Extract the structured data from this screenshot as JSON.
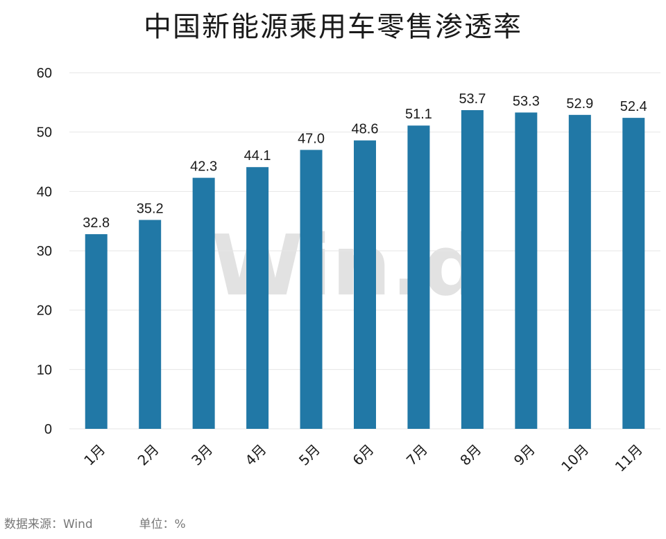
{
  "title": "中国新能源乘用车零售渗透率",
  "watermark": "Win.d",
  "footer": {
    "source_label": "数据来源：Wind",
    "unit_label": "单位：%"
  },
  "colors": {
    "bar": "#2178a6",
    "grid": "#e6e6e6",
    "text": "#1a1a1a",
    "watermark": "#e2e2e2"
  },
  "chart_data": {
    "type": "bar",
    "title": "中国新能源乘用车零售渗透率",
    "categories": [
      "1月",
      "2月",
      "3月",
      "4月",
      "5月",
      "6月",
      "7月",
      "8月",
      "9月",
      "10月",
      "11月"
    ],
    "values": [
      32.8,
      35.2,
      42.3,
      44.1,
      47.0,
      48.6,
      51.1,
      53.7,
      53.3,
      52.9,
      52.4
    ],
    "value_labels": [
      "32.8",
      "35.2",
      "42.3",
      "44.1",
      "47.0",
      "48.6",
      "51.1",
      "53.7",
      "53.3",
      "52.9",
      "52.4"
    ],
    "ylim": [
      0,
      60
    ],
    "yticks": [
      0,
      10,
      20,
      30,
      40,
      50,
      60
    ],
    "xlabel": "",
    "ylabel": "",
    "grid": true,
    "legend": "none"
  }
}
